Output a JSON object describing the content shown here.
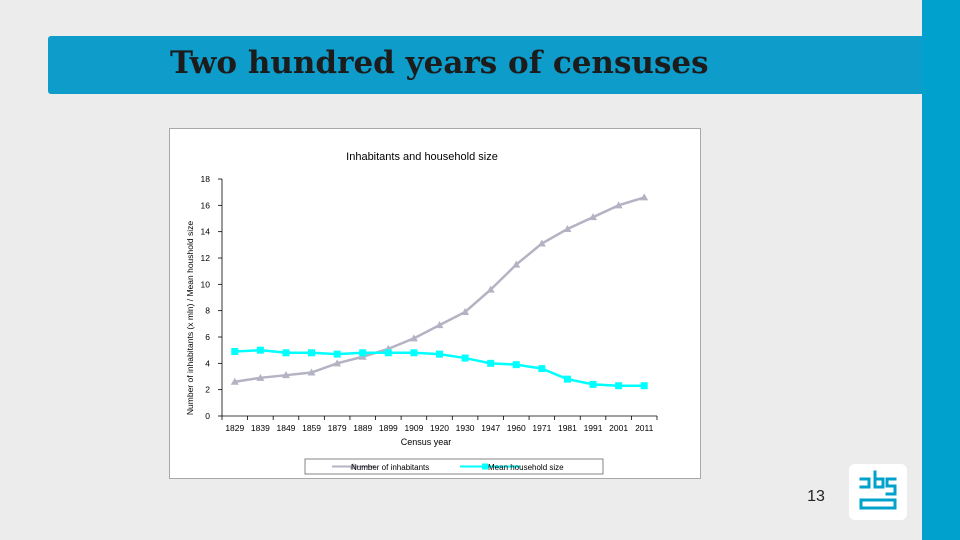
{
  "slide": {
    "title": "Two hundred years of censuses",
    "page_number": "13",
    "logo_icon": "cbs-logo-icon",
    "accent_color": "#00a1cd"
  },
  "chart_data": {
    "type": "line",
    "title": "Inhabitants and household size",
    "xlabel": "Census year",
    "ylabel": "Number of inhabitants (x mln) / Mean houshold size",
    "categories": [
      "1829",
      "1839",
      "1849",
      "1859",
      "1879",
      "1889",
      "1899",
      "1909",
      "1920",
      "1930",
      "1947",
      "1960",
      "1971",
      "1981",
      "1991",
      "2001",
      "2011"
    ],
    "ylim": [
      0,
      18
    ],
    "yticks": [
      0,
      2,
      4,
      6,
      8,
      10,
      12,
      14,
      16,
      18
    ],
    "grid": false,
    "legend_position": "bottom",
    "series": [
      {
        "name": "Number of inhabitants",
        "color": "#b3b3c3",
        "marker": "triangle",
        "values": [
          2.6,
          2.9,
          3.1,
          3.3,
          4.0,
          4.5,
          5.1,
          5.9,
          6.9,
          7.9,
          9.6,
          11.5,
          13.1,
          14.2,
          15.1,
          16.0,
          16.6
        ]
      },
      {
        "name": "Mean household size",
        "color": "#00ffff",
        "marker": "square",
        "values": [
          4.9,
          5.0,
          4.8,
          4.8,
          4.7,
          4.8,
          4.8,
          4.8,
          4.7,
          4.4,
          4.0,
          3.9,
          3.6,
          2.8,
          2.4,
          2.3,
          2.3
        ]
      }
    ]
  }
}
